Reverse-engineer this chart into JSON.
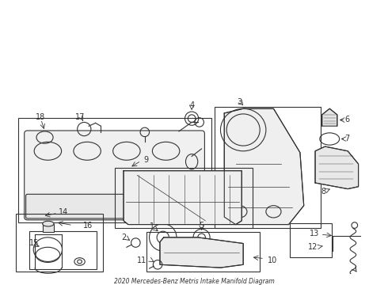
{
  "title": "2020 Mercedes-Benz Metris Intake Manifold Diagram",
  "bg_color": "#ffffff",
  "line_color": "#333333",
  "part_numbers": [
    1,
    2,
    3,
    4,
    5,
    6,
    7,
    8,
    9,
    10,
    11,
    12,
    13,
    14,
    15,
    16,
    17,
    18
  ]
}
